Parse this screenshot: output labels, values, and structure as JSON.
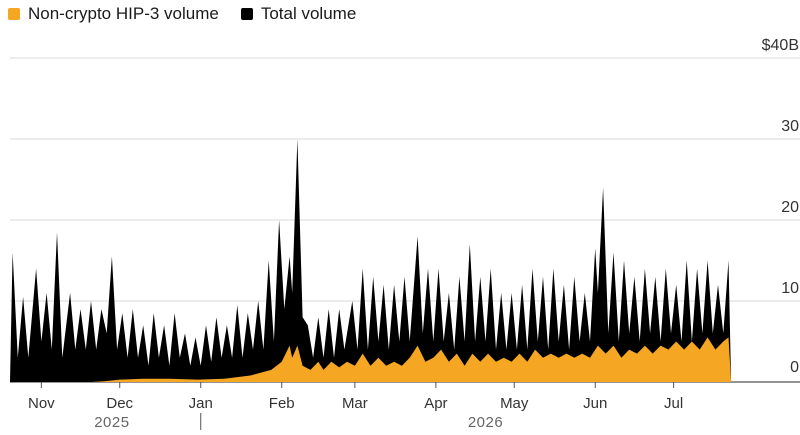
{
  "legend": {
    "items": [
      {
        "label": "Non-crypto HIP-3 volume",
        "color": "#F5A623"
      },
      {
        "label": "Total volume",
        "color": "#000000"
      }
    ]
  },
  "chart_data": {
    "type": "area",
    "title": "",
    "xlabel": "",
    "ylabel": "",
    "ylim": [
      0,
      40
    ],
    "yticks": [
      {
        "value": 40,
        "label": "$40B"
      },
      {
        "value": 30,
        "label": "30"
      },
      {
        "value": 20,
        "label": "20"
      },
      {
        "value": 10,
        "label": "10"
      },
      {
        "value": 0,
        "label": "0"
      }
    ],
    "x_period": {
      "start": "2025-10-20",
      "end": "2026-07-31"
    },
    "month_ticks": [
      {
        "label": "Nov",
        "date": "2025-11-01"
      },
      {
        "label": "Dec",
        "date": "2025-12-01"
      },
      {
        "label": "Jan",
        "date": "2026-01-01"
      },
      {
        "label": "Feb",
        "date": "2026-02-01"
      },
      {
        "label": "Mar",
        "date": "2026-03-01"
      },
      {
        "label": "Apr",
        "date": "2026-04-01"
      },
      {
        "label": "May",
        "date": "2026-05-01"
      },
      {
        "label": "Jun",
        "date": "2026-06-01"
      },
      {
        "label": "Jul",
        "date": "2026-07-01"
      }
    ],
    "year_labels": [
      {
        "label": "2025",
        "date": "2025-11-28"
      },
      {
        "label": "2026",
        "date": "2026-04-20"
      }
    ],
    "year_divider": "2026-01-01",
    "grid": true,
    "series": [
      {
        "name": "Total volume",
        "color": "#000000",
        "points": [
          [
            "2025-10-20",
            0
          ],
          [
            "2025-10-21",
            16
          ],
          [
            "2025-10-23",
            3
          ],
          [
            "2025-10-25",
            10.5
          ],
          [
            "2025-10-27",
            3
          ],
          [
            "2025-10-30",
            14
          ],
          [
            "2025-11-01",
            5
          ],
          [
            "2025-11-03",
            11
          ],
          [
            "2025-11-05",
            4
          ],
          [
            "2025-11-07",
            18.5
          ],
          [
            "2025-11-09",
            3
          ],
          [
            "2025-11-12",
            11
          ],
          [
            "2025-11-14",
            4
          ],
          [
            "2025-11-16",
            9
          ],
          [
            "2025-11-18",
            4
          ],
          [
            "2025-11-20",
            10
          ],
          [
            "2025-11-22",
            4
          ],
          [
            "2025-11-24",
            9
          ],
          [
            "2025-11-26",
            6
          ],
          [
            "2025-11-28",
            15.5
          ],
          [
            "2025-11-30",
            4
          ],
          [
            "2025-12-02",
            8.5
          ],
          [
            "2025-12-04",
            3
          ],
          [
            "2025-12-06",
            9
          ],
          [
            "2025-12-08",
            3
          ],
          [
            "2025-12-10",
            7
          ],
          [
            "2025-12-12",
            2
          ],
          [
            "2025-12-14",
            8.5
          ],
          [
            "2025-12-16",
            3
          ],
          [
            "2025-12-18",
            7
          ],
          [
            "2025-12-20",
            2
          ],
          [
            "2025-12-22",
            8.5
          ],
          [
            "2025-12-24",
            3
          ],
          [
            "2025-12-26",
            6
          ],
          [
            "2025-12-28",
            2
          ],
          [
            "2025-12-30",
            5.5
          ],
          [
            "2026-01-01",
            2
          ],
          [
            "2026-01-03",
            7
          ],
          [
            "2026-01-05",
            2.5
          ],
          [
            "2026-01-07",
            8
          ],
          [
            "2026-01-09",
            3
          ],
          [
            "2026-01-11",
            7
          ],
          [
            "2026-01-13",
            3
          ],
          [
            "2026-01-15",
            9.5
          ],
          [
            "2026-01-17",
            3
          ],
          [
            "2026-01-19",
            8.5
          ],
          [
            "2026-01-21",
            4
          ],
          [
            "2026-01-23",
            10
          ],
          [
            "2026-01-25",
            4
          ],
          [
            "2026-01-27",
            15
          ],
          [
            "2026-01-29",
            5
          ],
          [
            "2026-01-31",
            20
          ],
          [
            "2026-02-02",
            9
          ],
          [
            "2026-02-04",
            15.5
          ],
          [
            "2026-02-05",
            11
          ],
          [
            "2026-02-07",
            30
          ],
          [
            "2026-02-09",
            8
          ],
          [
            "2026-02-11",
            7
          ],
          [
            "2026-02-13",
            3
          ],
          [
            "2026-02-15",
            8
          ],
          [
            "2026-02-17",
            3
          ],
          [
            "2026-02-19",
            9
          ],
          [
            "2026-02-21",
            3
          ],
          [
            "2026-02-23",
            9
          ],
          [
            "2026-02-25",
            4
          ],
          [
            "2026-02-28",
            10
          ],
          [
            "2026-03-02",
            4
          ],
          [
            "2026-03-04",
            14
          ],
          [
            "2026-03-06",
            4
          ],
          [
            "2026-03-08",
            13
          ],
          [
            "2026-03-10",
            5
          ],
          [
            "2026-03-12",
            12
          ],
          [
            "2026-03-14",
            4
          ],
          [
            "2026-03-16",
            12
          ],
          [
            "2026-03-18",
            5
          ],
          [
            "2026-03-20",
            13
          ],
          [
            "2026-03-22",
            5
          ],
          [
            "2026-03-25",
            18
          ],
          [
            "2026-03-27",
            6
          ],
          [
            "2026-03-29",
            14
          ],
          [
            "2026-03-31",
            5
          ],
          [
            "2026-04-02",
            14
          ],
          [
            "2026-04-04",
            5
          ],
          [
            "2026-04-06",
            11
          ],
          [
            "2026-04-08",
            4
          ],
          [
            "2026-04-10",
            13
          ],
          [
            "2026-04-12",
            5
          ],
          [
            "2026-04-14",
            17
          ],
          [
            "2026-04-16",
            5
          ],
          [
            "2026-04-18",
            13
          ],
          [
            "2026-04-20",
            5
          ],
          [
            "2026-04-22",
            14
          ],
          [
            "2026-04-24",
            4
          ],
          [
            "2026-04-26",
            11
          ],
          [
            "2026-04-28",
            4
          ],
          [
            "2026-04-30",
            11
          ],
          [
            "2026-05-02",
            4
          ],
          [
            "2026-05-04",
            12
          ],
          [
            "2026-05-06",
            4
          ],
          [
            "2026-05-08",
            14
          ],
          [
            "2026-05-10",
            5
          ],
          [
            "2026-05-12",
            13
          ],
          [
            "2026-05-14",
            4
          ],
          [
            "2026-05-16",
            14
          ],
          [
            "2026-05-18",
            5
          ],
          [
            "2026-05-20",
            12
          ],
          [
            "2026-05-22",
            4
          ],
          [
            "2026-05-24",
            13
          ],
          [
            "2026-05-26",
            5
          ],
          [
            "2026-05-28",
            11
          ],
          [
            "2026-05-30",
            5
          ],
          [
            "2026-06-01",
            16.5
          ],
          [
            "2026-06-02",
            11
          ],
          [
            "2026-06-04",
            24
          ],
          [
            "2026-06-06",
            6
          ],
          [
            "2026-06-08",
            16
          ],
          [
            "2026-06-10",
            5
          ],
          [
            "2026-06-12",
            15
          ],
          [
            "2026-06-14",
            6
          ],
          [
            "2026-06-16",
            13
          ],
          [
            "2026-06-18",
            5
          ],
          [
            "2026-06-20",
            14
          ],
          [
            "2026-06-22",
            6
          ],
          [
            "2026-06-24",
            13
          ],
          [
            "2026-06-26",
            5
          ],
          [
            "2026-06-28",
            14
          ],
          [
            "2026-06-30",
            6
          ],
          [
            "2026-07-02",
            12
          ],
          [
            "2026-07-04",
            5
          ],
          [
            "2026-07-06",
            15
          ],
          [
            "2026-07-08",
            5
          ],
          [
            "2026-07-10",
            14
          ],
          [
            "2026-07-12",
            6
          ],
          [
            "2026-07-14",
            15
          ],
          [
            "2026-07-16",
            6
          ],
          [
            "2026-07-18",
            12
          ],
          [
            "2026-07-20",
            6
          ],
          [
            "2026-07-22",
            15
          ],
          [
            "2026-07-23",
            0
          ]
        ]
      },
      {
        "name": "Non-crypto HIP-3 volume",
        "color": "#F5A623",
        "points": [
          [
            "2025-10-20",
            0
          ],
          [
            "2025-11-20",
            0
          ],
          [
            "2025-11-25",
            0.1
          ],
          [
            "2025-12-01",
            0.3
          ],
          [
            "2025-12-10",
            0.4
          ],
          [
            "2025-12-20",
            0.4
          ],
          [
            "2025-12-31",
            0.3
          ],
          [
            "2026-01-10",
            0.4
          ],
          [
            "2026-01-20",
            0.8
          ],
          [
            "2026-01-28",
            1.5
          ],
          [
            "2026-02-01",
            2.5
          ],
          [
            "2026-02-04",
            4.5
          ],
          [
            "2026-02-05",
            3
          ],
          [
            "2026-02-07",
            4.5
          ],
          [
            "2026-02-09",
            2
          ],
          [
            "2026-02-12",
            1.5
          ],
          [
            "2026-02-15",
            2.5
          ],
          [
            "2026-02-17",
            1.5
          ],
          [
            "2026-02-20",
            2.5
          ],
          [
            "2026-02-23",
            1.8
          ],
          [
            "2026-02-26",
            2.5
          ],
          [
            "2026-03-01",
            2
          ],
          [
            "2026-03-04",
            3.5
          ],
          [
            "2026-03-07",
            2
          ],
          [
            "2026-03-10",
            3
          ],
          [
            "2026-03-13",
            2
          ],
          [
            "2026-03-16",
            2.5
          ],
          [
            "2026-03-19",
            2
          ],
          [
            "2026-03-22",
            3
          ],
          [
            "2026-03-25",
            4.5
          ],
          [
            "2026-03-28",
            2.5
          ],
          [
            "2026-03-31",
            3
          ],
          [
            "2026-04-03",
            4
          ],
          [
            "2026-04-06",
            2.5
          ],
          [
            "2026-04-09",
            3.5
          ],
          [
            "2026-04-12",
            2
          ],
          [
            "2026-04-15",
            3.5
          ],
          [
            "2026-04-18",
            2.5
          ],
          [
            "2026-04-21",
            3.5
          ],
          [
            "2026-04-24",
            2.5
          ],
          [
            "2026-04-27",
            3
          ],
          [
            "2026-04-30",
            2.5
          ],
          [
            "2026-05-03",
            3.5
          ],
          [
            "2026-05-06",
            2.5
          ],
          [
            "2026-05-09",
            4
          ],
          [
            "2026-05-12",
            3
          ],
          [
            "2026-05-15",
            3.5
          ],
          [
            "2026-05-18",
            3
          ],
          [
            "2026-05-21",
            3.5
          ],
          [
            "2026-05-24",
            3
          ],
          [
            "2026-05-27",
            3.5
          ],
          [
            "2026-05-30",
            3
          ],
          [
            "2026-06-02",
            4.5
          ],
          [
            "2026-06-05",
            3.5
          ],
          [
            "2026-06-08",
            4.5
          ],
          [
            "2026-06-11",
            3
          ],
          [
            "2026-06-14",
            4
          ],
          [
            "2026-06-17",
            3.5
          ],
          [
            "2026-06-20",
            4.5
          ],
          [
            "2026-06-23",
            3.5
          ],
          [
            "2026-06-26",
            4.5
          ],
          [
            "2026-06-29",
            4
          ],
          [
            "2026-07-02",
            5
          ],
          [
            "2026-07-05",
            4
          ],
          [
            "2026-07-08",
            5
          ],
          [
            "2026-07-11",
            4
          ],
          [
            "2026-07-14",
            5.5
          ],
          [
            "2026-07-17",
            4
          ],
          [
            "2026-07-20",
            5
          ],
          [
            "2026-07-22",
            5.5
          ],
          [
            "2026-07-23",
            0
          ]
        ]
      }
    ]
  }
}
